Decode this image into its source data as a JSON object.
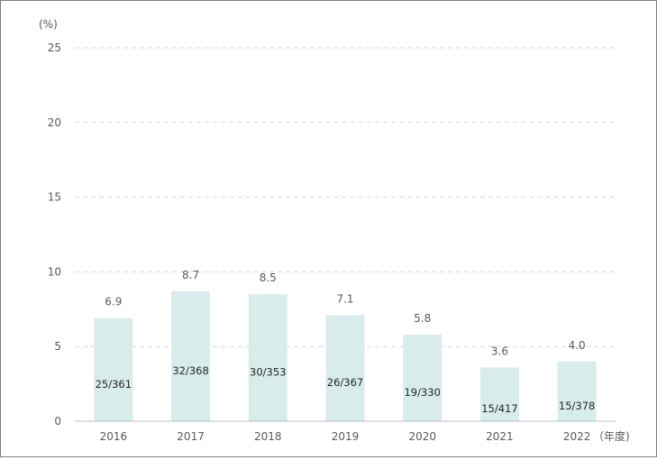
{
  "chart_data": {
    "type": "bar",
    "categories": [
      "2016",
      "2017",
      "2018",
      "2019",
      "2020",
      "2021",
      "2022"
    ],
    "values": [
      6.9,
      8.7,
      8.5,
      7.1,
      5.8,
      3.6,
      4.0
    ],
    "value_labels": [
      "6.9",
      "8.7",
      "8.5",
      "7.1",
      "5.8",
      "3.6",
      "4.0"
    ],
    "inner_labels": [
      "25/361",
      "32/368",
      "30/353",
      "26/367",
      "19/330",
      "15/417",
      "15/378"
    ],
    "y_unit_label": "(%)",
    "x_unit_label": "（年度)",
    "yticks": [
      0,
      5,
      10,
      15,
      20,
      25
    ],
    "ylim": [
      0,
      25
    ],
    "grid": true,
    "legend": "none",
    "colors": {
      "bar": "#d9ecec",
      "grid": "#d9d9d9",
      "axis": "#bfbfbf",
      "text": "#595959"
    }
  }
}
